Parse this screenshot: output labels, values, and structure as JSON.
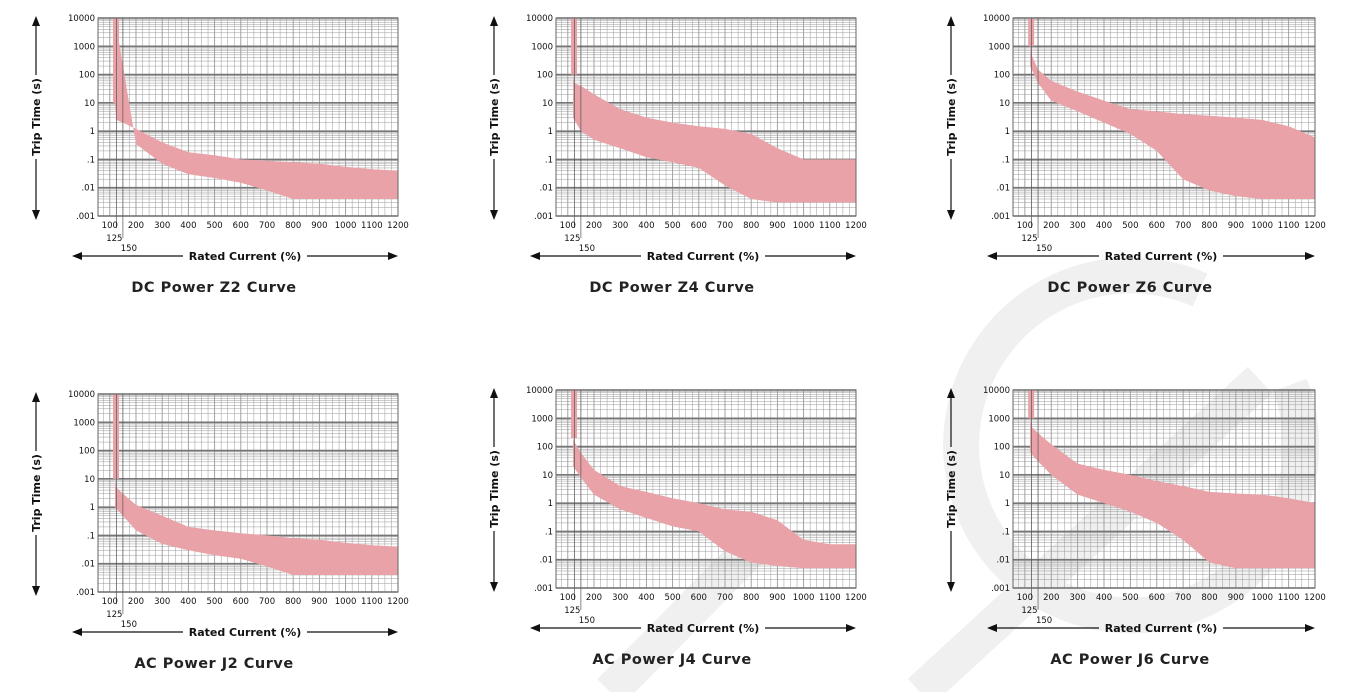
{
  "labels": {
    "y_axis": "Trip Time (s)",
    "x_axis": "Rated Current (%)"
  },
  "style": {
    "band_color": "#e9a2a8",
    "grid_color": "#9a9a9a",
    "axis_color": "#111111",
    "watermark_color": "#f0f0f0"
  },
  "chart_data": [
    {
      "type": "area",
      "title": "DC Power Z2 Curve",
      "xlabel": "Rated Current (%)",
      "ylabel": "Trip Time (s)",
      "y_scale": "log",
      "ylim": [
        0.001,
        10000
      ],
      "xlim": [
        55,
        1200
      ],
      "y_ticks": [
        "10000",
        "1000",
        "100",
        "10",
        "1",
        ".1",
        ".01",
        ".001"
      ],
      "x_ticks": [
        "100",
        "200",
        "300",
        "400",
        "500",
        "600",
        "700",
        "800",
        "900",
        "1000",
        "1100",
        "1200"
      ],
      "x_extra_ticks": [
        "125",
        "150"
      ],
      "series": [
        {
          "upper": [
            [
              120,
              10000
            ],
            [
              120,
              10
            ],
            [
              125,
              2.5
            ],
            [
              150,
              2
            ],
            [
              200,
              1.2
            ],
            [
              300,
              0.4
            ],
            [
              400,
              0.18
            ],
            [
              500,
              0.14
            ],
            [
              600,
              0.1
            ],
            [
              700,
              0.09
            ],
            [
              800,
              0.08
            ],
            [
              900,
              0.07
            ],
            [
              1000,
              0.055
            ],
            [
              1100,
              0.045
            ],
            [
              1200,
              0.04
            ]
          ],
          "lower": [
            [
              200,
              0.35
            ],
            [
              120,
              1
            ],
            [
              300,
              0.07
            ],
            [
              400,
              0.03
            ],
            [
              500,
              0.022
            ],
            [
              600,
              0.015
            ],
            [
              700,
              0.008
            ],
            [
              800,
              0.004
            ],
            [
              900,
              0.004
            ],
            [
              1000,
              0.004
            ],
            [
              1100,
              0.004
            ],
            [
              1200,
              0.004
            ],
            [
              120,
              10000
            ]
          ]
        }
      ]
    },
    {
      "type": "area",
      "title": "DC Power Z4 Curve",
      "xlabel": "Rated Current (%)",
      "ylabel": "Trip Time (s)",
      "y_scale": "log",
      "ylim": [
        0.001,
        10000
      ],
      "xlim": [
        55,
        1200
      ],
      "y_ticks": [
        "10000",
        "1000",
        "100",
        "10",
        "1",
        ".1",
        ".01",
        ".001"
      ],
      "x_ticks": [
        "100",
        "200",
        "300",
        "400",
        "500",
        "600",
        "700",
        "800",
        "900",
        "1000",
        "1100",
        "1200"
      ],
      "x_extra_ticks": [
        "125",
        "150"
      ],
      "series": [
        {
          "upper": [
            [
              120,
              10000
            ],
            [
              120,
              100
            ],
            [
              125,
              50
            ],
            [
              150,
              40
            ],
            [
              200,
              20
            ],
            [
              300,
              6
            ],
            [
              400,
              3
            ],
            [
              500,
              2
            ],
            [
              600,
              1.5
            ],
            [
              700,
              1.2
            ],
            [
              800,
              0.8
            ],
            [
              900,
              0.25
            ],
            [
              1000,
              0.1
            ],
            [
              1100,
              0.1
            ],
            [
              1200,
              0.1
            ]
          ],
          "lower": [
            [
              120,
              3
            ],
            [
              150,
              1
            ],
            [
              200,
              0.5
            ],
            [
              300,
              0.25
            ],
            [
              400,
              0.12
            ],
            [
              500,
              0.08
            ],
            [
              600,
              0.05
            ],
            [
              700,
              0.012
            ],
            [
              800,
              0.004
            ],
            [
              900,
              0.003
            ],
            [
              1000,
              0.003
            ],
            [
              1100,
              0.003
            ],
            [
              1200,
              0.003
            ]
          ]
        }
      ]
    },
    {
      "type": "area",
      "title": "DC Power Z6 Curve",
      "xlabel": "Rated Current (%)",
      "ylabel": "Trip Time (s)",
      "y_scale": "log",
      "ylim": [
        0.001,
        10000
      ],
      "xlim": [
        55,
        1200
      ],
      "y_ticks": [
        "10000",
        "1000",
        "100",
        "10",
        "1",
        ".1",
        ".01",
        ".001"
      ],
      "x_ticks": [
        "100",
        "200",
        "300",
        "400",
        "500",
        "600",
        "700",
        "800",
        "900",
        "1000",
        "1100",
        "1200"
      ],
      "x_extra_ticks": [
        "125",
        "150"
      ],
      "series": [
        {
          "upper": [
            [
              120,
              10000
            ],
            [
              120,
              1000
            ],
            [
              125,
              500
            ],
            [
              150,
              150
            ],
            [
              200,
              60
            ],
            [
              300,
              25
            ],
            [
              400,
              12
            ],
            [
              500,
              6
            ],
            [
              600,
              5
            ],
            [
              700,
              4
            ],
            [
              800,
              3.5
            ],
            [
              900,
              3
            ],
            [
              1000,
              2.5
            ],
            [
              1100,
              1.5
            ],
            [
              1200,
              0.6
            ]
          ],
          "lower": [
            [
              120,
              200
            ],
            [
              150,
              50
            ],
            [
              200,
              12
            ],
            [
              300,
              5
            ],
            [
              400,
              2
            ],
            [
              500,
              0.8
            ],
            [
              600,
              0.2
            ],
            [
              700,
              0.02
            ],
            [
              800,
              0.008
            ],
            [
              900,
              0.005
            ],
            [
              1000,
              0.004
            ],
            [
              1100,
              0.004
            ],
            [
              1200,
              0.004
            ]
          ]
        }
      ]
    },
    {
      "type": "area",
      "title": "AC Power J2 Curve",
      "xlabel": "Rated Current (%)",
      "ylabel": "Trip Time (s)",
      "y_scale": "log",
      "ylim": [
        0.001,
        10000
      ],
      "xlim": [
        55,
        1200
      ],
      "y_ticks": [
        "10000",
        "1000",
        "100",
        "10",
        "1",
        ".1",
        ".01",
        ".001"
      ],
      "x_ticks": [
        "100",
        "200",
        "300",
        "400",
        "500",
        "600",
        "700",
        "800",
        "900",
        "1000",
        "1100",
        "1200"
      ],
      "x_extra_ticks": [
        "125",
        "150"
      ],
      "series": [
        {
          "upper": [
            [
              120,
              10000
            ],
            [
              120,
              10
            ],
            [
              125,
              5
            ],
            [
              150,
              3
            ],
            [
              200,
              1.2
            ],
            [
              300,
              0.5
            ],
            [
              400,
              0.2
            ],
            [
              500,
              0.15
            ],
            [
              600,
              0.12
            ],
            [
              700,
              0.1
            ],
            [
              800,
              0.08
            ],
            [
              900,
              0.07
            ],
            [
              1000,
              0.055
            ],
            [
              1100,
              0.045
            ],
            [
              1200,
              0.04
            ]
          ],
          "lower": [
            [
              120,
              1
            ],
            [
              150,
              0.5
            ],
            [
              200,
              0.15
            ],
            [
              300,
              0.05
            ],
            [
              400,
              0.03
            ],
            [
              500,
              0.02
            ],
            [
              600,
              0.015
            ],
            [
              700,
              0.008
            ],
            [
              800,
              0.004
            ],
            [
              900,
              0.004
            ],
            [
              1000,
              0.004
            ],
            [
              1100,
              0.004
            ],
            [
              1200,
              0.004
            ]
          ]
        }
      ]
    },
    {
      "type": "area",
      "title": "AC Power J4 Curve",
      "xlabel": "Rated Current (%)",
      "ylabel": "Trip Time (s)",
      "y_scale": "log",
      "ylim": [
        0.001,
        10000
      ],
      "xlim": [
        55,
        1200
      ],
      "y_ticks": [
        "10000",
        "1000",
        "100",
        "10",
        "1",
        ".1",
        ".01",
        ".001"
      ],
      "x_ticks": [
        "100",
        "200",
        "300",
        "400",
        "500",
        "600",
        "700",
        "800",
        "900",
        "1000",
        "1100",
        "1200"
      ],
      "x_extra_ticks": [
        "125",
        "150"
      ],
      "series": [
        {
          "upper": [
            [
              120,
              10000
            ],
            [
              120,
              200
            ],
            [
              125,
              150
            ],
            [
              150,
              60
            ],
            [
              200,
              15
            ],
            [
              300,
              4
            ],
            [
              400,
              2.5
            ],
            [
              500,
              1.5
            ],
            [
              600,
              1
            ],
            [
              700,
              0.6
            ],
            [
              800,
              0.5
            ],
            [
              900,
              0.25
            ],
            [
              1000,
              0.05
            ],
            [
              1100,
              0.035
            ],
            [
              1200,
              0.035
            ]
          ],
          "lower": [
            [
              120,
              20
            ],
            [
              150,
              8
            ],
            [
              200,
              2
            ],
            [
              300,
              0.6
            ],
            [
              400,
              0.3
            ],
            [
              500,
              0.15
            ],
            [
              600,
              0.1
            ],
            [
              700,
              0.02
            ],
            [
              800,
              0.008
            ],
            [
              900,
              0.006
            ],
            [
              1000,
              0.005
            ],
            [
              1100,
              0.005
            ],
            [
              1200,
              0.005
            ]
          ]
        }
      ]
    },
    {
      "type": "area",
      "title": "AC Power J6 Curve",
      "xlabel": "Rated Current (%)",
      "ylabel": "Trip Time (s)",
      "y_scale": "log",
      "ylim": [
        0.001,
        10000
      ],
      "xlim": [
        55,
        1200
      ],
      "y_ticks": [
        "10000",
        "1000",
        "100",
        "10",
        "1",
        ".1",
        ".01",
        ".001"
      ],
      "x_ticks": [
        "100",
        "200",
        "300",
        "400",
        "500",
        "600",
        "700",
        "800",
        "900",
        "1000",
        "1100",
        "1200"
      ],
      "x_extra_ticks": [
        "125",
        "150"
      ],
      "series": [
        {
          "upper": [
            [
              120,
              10000
            ],
            [
              120,
              1000
            ],
            [
              125,
              500
            ],
            [
              150,
              300
            ],
            [
              200,
              120
            ],
            [
              300,
              25
            ],
            [
              400,
              15
            ],
            [
              500,
              10
            ],
            [
              600,
              6
            ],
            [
              700,
              4
            ],
            [
              800,
              2.5
            ],
            [
              900,
              2.2
            ],
            [
              1000,
              2
            ],
            [
              1100,
              1.5
            ],
            [
              1200,
              1
            ]
          ],
          "lower": [
            [
              120,
              60
            ],
            [
              150,
              30
            ],
            [
              200,
              10
            ],
            [
              300,
              2
            ],
            [
              400,
              1
            ],
            [
              500,
              0.5
            ],
            [
              600,
              0.2
            ],
            [
              700,
              0.05
            ],
            [
              800,
              0.008
            ],
            [
              900,
              0.005
            ],
            [
              1000,
              0.005
            ],
            [
              1100,
              0.005
            ],
            [
              1200,
              0.005
            ]
          ]
        }
      ]
    }
  ]
}
